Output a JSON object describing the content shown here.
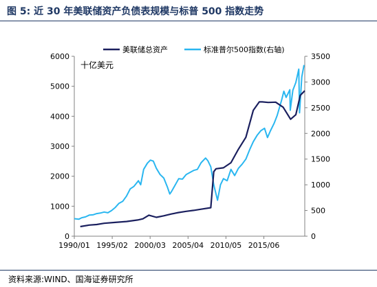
{
  "figure_title": "图 5:  近 30 年美联储资产负债表规模与标普 500 指数走势",
  "source_text": "资料来源:WIND、国海证券研究所",
  "colors": {
    "title": "#1f3864",
    "fed": "#1a1f5e",
    "sp500": "#29b6f0"
  },
  "chart_data": {
    "type": "line",
    "unit_label": "十亿美元",
    "x_ticks": [
      "1990/01",
      "1995/02",
      "2000/03",
      "2005/04",
      "2010/05",
      "2015/06"
    ],
    "y_left": {
      "ticks": [
        0,
        1000,
        2000,
        3000,
        4000,
        5000,
        6000
      ],
      "range": [
        0,
        6000
      ]
    },
    "y_right": {
      "ticks": [
        0,
        500,
        1000,
        1500,
        2000,
        2500,
        3000,
        3500
      ],
      "range": [
        0,
        3500
      ]
    },
    "x_range": [
      1990.0,
      2020.9
    ],
    "legend": {
      "position": "top"
    },
    "series": [
      {
        "name": "美联储总资产",
        "axis": "left",
        "color": "#1a1f5e",
        "points": [
          [
            1990.8,
            320
          ],
          [
            1992,
            370
          ],
          [
            1993,
            390
          ],
          [
            1994,
            430
          ],
          [
            1995.5,
            460
          ],
          [
            1997,
            490
          ],
          [
            1998.5,
            540
          ],
          [
            1999.2,
            580
          ],
          [
            2000,
            700
          ],
          [
            2001,
            630
          ],
          [
            2002,
            680
          ],
          [
            2003,
            740
          ],
          [
            2004,
            790
          ],
          [
            2005,
            830
          ],
          [
            2006,
            860
          ],
          [
            2007,
            900
          ],
          [
            2008.3,
            950
          ],
          [
            2008.7,
            2150
          ],
          [
            2009,
            2250
          ],
          [
            2010,
            2280
          ],
          [
            2011,
            2450
          ],
          [
            2012,
            2900
          ],
          [
            2013,
            3300
          ],
          [
            2014,
            4200
          ],
          [
            2014.8,
            4480
          ],
          [
            2015.2,
            4480
          ],
          [
            2016,
            4460
          ],
          [
            2017,
            4470
          ],
          [
            2018,
            4300
          ],
          [
            2019,
            3900
          ],
          [
            2019.7,
            4050
          ],
          [
            2020.3,
            4700
          ],
          [
            2020.9,
            4850
          ]
        ]
      },
      {
        "name": "标准普尔500指数(右轴)",
        "axis": "right",
        "color": "#29b6f0",
        "points": [
          [
            1990.0,
            340
          ],
          [
            1990.6,
            330
          ],
          [
            1991,
            360
          ],
          [
            1991.5,
            375
          ],
          [
            1992,
            410
          ],
          [
            1992.5,
            415
          ],
          [
            1993,
            440
          ],
          [
            1993.5,
            450
          ],
          [
            1994,
            470
          ],
          [
            1994.5,
            455
          ],
          [
            1995,
            500
          ],
          [
            1995.5,
            560
          ],
          [
            1996,
            640
          ],
          [
            1996.5,
            680
          ],
          [
            1997,
            780
          ],
          [
            1997.5,
            920
          ],
          [
            1998,
            970
          ],
          [
            1998.6,
            1080
          ],
          [
            1998.9,
            1000
          ],
          [
            1999.3,
            1300
          ],
          [
            1999.8,
            1420
          ],
          [
            2000.2,
            1480
          ],
          [
            2000.6,
            1460
          ],
          [
            2001,
            1320
          ],
          [
            2001.5,
            1200
          ],
          [
            2002,
            1130
          ],
          [
            2002.5,
            950
          ],
          [
            2002.8,
            820
          ],
          [
            2003,
            860
          ],
          [
            2003.5,
            990
          ],
          [
            2004,
            1120
          ],
          [
            2004.5,
            1110
          ],
          [
            2005,
            1200
          ],
          [
            2005.5,
            1240
          ],
          [
            2006,
            1280
          ],
          [
            2006.5,
            1300
          ],
          [
            2007,
            1430
          ],
          [
            2007.6,
            1520
          ],
          [
            2007.9,
            1470
          ],
          [
            2008.3,
            1350
          ],
          [
            2008.7,
            1000
          ],
          [
            2009.2,
            700
          ],
          [
            2009.6,
            1000
          ],
          [
            2010,
            1120
          ],
          [
            2010.5,
            1080
          ],
          [
            2011,
            1300
          ],
          [
            2011.5,
            1180
          ],
          [
            2012,
            1320
          ],
          [
            2012.5,
            1400
          ],
          [
            2013,
            1500
          ],
          [
            2013.5,
            1680
          ],
          [
            2014,
            1840
          ],
          [
            2014.5,
            1960
          ],
          [
            2015,
            2050
          ],
          [
            2015.5,
            2100
          ],
          [
            2015.9,
            1920
          ],
          [
            2016.3,
            2050
          ],
          [
            2016.8,
            2200
          ],
          [
            2017.2,
            2350
          ],
          [
            2017.8,
            2650
          ],
          [
            2018.1,
            2820
          ],
          [
            2018.4,
            2700
          ],
          [
            2018.9,
            2850
          ],
          [
            2018.95,
            2450
          ],
          [
            2019.3,
            2840
          ],
          [
            2019.7,
            2990
          ],
          [
            2020.1,
            3250
          ],
          [
            2020.2,
            2400
          ],
          [
            2020.5,
            3100
          ],
          [
            2020.8,
            3330
          ]
        ]
      }
    ]
  }
}
